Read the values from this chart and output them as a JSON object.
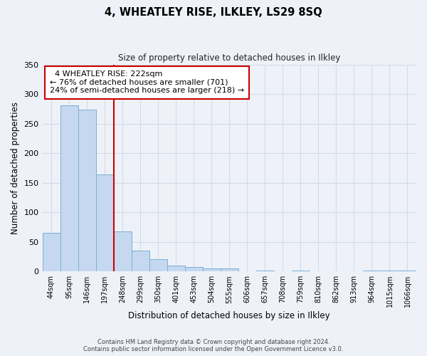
{
  "title": "4, WHEATLEY RISE, ILKLEY, LS29 8SQ",
  "subtitle": "Size of property relative to detached houses in Ilkley",
  "xlabel": "Distribution of detached houses by size in Ilkley",
  "ylabel": "Number of detached properties",
  "bar_labels": [
    "44sqm",
    "95sqm",
    "146sqm",
    "197sqm",
    "248sqm",
    "299sqm",
    "350sqm",
    "401sqm",
    "453sqm",
    "504sqm",
    "555sqm",
    "606sqm",
    "657sqm",
    "708sqm",
    "759sqm",
    "810sqm",
    "862sqm",
    "913sqm",
    "964sqm",
    "1015sqm",
    "1066sqm"
  ],
  "bar_values": [
    65,
    281,
    273,
    164,
    68,
    35,
    21,
    10,
    7,
    5,
    5,
    0,
    2,
    0,
    2,
    0,
    0,
    0,
    2,
    2,
    2
  ],
  "bar_color": "#c5d8ef",
  "bar_edge_color": "#7bafd4",
  "grid_color": "#d0dce8",
  "background_color": "#eef2f8",
  "ylim": [
    0,
    350
  ],
  "yticks": [
    0,
    50,
    100,
    150,
    200,
    250,
    300,
    350
  ],
  "property_line_x": 3.5,
  "property_line_color": "#cc0000",
  "annotation_title": "4 WHEATLEY RISE: 222sqm",
  "annotation_line1": "← 76% of detached houses are smaller (701)",
  "annotation_line2": "24% of semi-detached houses are larger (218) →",
  "annotation_box_color": "#ffffff",
  "annotation_box_edge": "#cc0000",
  "footer_line1": "Contains HM Land Registry data © Crown copyright and database right 2024.",
  "footer_line2": "Contains public sector information licensed under the Open Government Licence v3.0."
}
